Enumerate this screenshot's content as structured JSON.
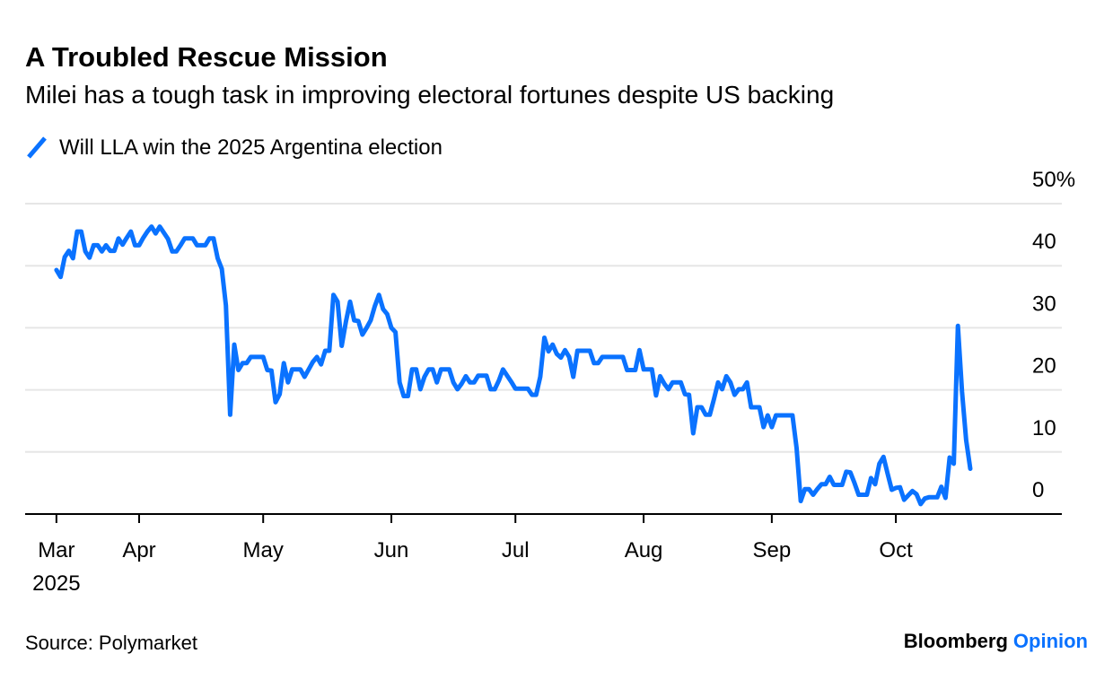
{
  "title": "A Troubled Rescue Mission",
  "subtitle": "Milei has a tough task in improving electoral fortunes despite US backing",
  "source": "Source: Polymarket",
  "logo": {
    "brand": "Bloomberg",
    "section": "Opinion"
  },
  "colors": {
    "series": "#0a72ff",
    "grid": "#e6e6e6",
    "axis": "#000000",
    "logo_accent": "#0a72ff"
  },
  "chart_data": {
    "type": "line",
    "title": "A Troubled Rescue Mission",
    "subtitle": "Milei has a tough task in improving electoral fortunes despite US backing",
    "legend_placement": "top-left",
    "grid": true,
    "ylim": [
      0,
      50
    ],
    "y_ticks": [
      {
        "value": 50,
        "label": "50%"
      },
      {
        "value": 40,
        "label": "40"
      },
      {
        "value": 30,
        "label": "30"
      },
      {
        "value": 20,
        "label": "20"
      },
      {
        "value": 10,
        "label": "10"
      },
      {
        "value": 0,
        "label": "0"
      }
    ],
    "x_ticks": [
      {
        "date": "2025-03-12",
        "label": "Mar",
        "sublabel": "2025"
      },
      {
        "date": "2025-04-01",
        "label": "Apr"
      },
      {
        "date": "2025-05-01",
        "label": "May"
      },
      {
        "date": "2025-06-01",
        "label": "Jun"
      },
      {
        "date": "2025-07-01",
        "label": "Jul"
      },
      {
        "date": "2025-08-01",
        "label": "Aug"
      },
      {
        "date": "2025-09-01",
        "label": "Sep"
      },
      {
        "date": "2025-10-01",
        "label": "Oct"
      }
    ],
    "series": [
      {
        "name": "Will LLA win the 2025 Argentina election",
        "dates": [
          "2025-03-12",
          "2025-03-13",
          "2025-03-14",
          "2025-03-15",
          "2025-03-16",
          "2025-03-17",
          "2025-03-18",
          "2025-03-19",
          "2025-03-20",
          "2025-03-21",
          "2025-03-22",
          "2025-03-23",
          "2025-03-24",
          "2025-03-25",
          "2025-03-26",
          "2025-03-27",
          "2025-03-28",
          "2025-03-29",
          "2025-03-30",
          "2025-03-31",
          "2025-04-01",
          "2025-04-02",
          "2025-04-03",
          "2025-04-04",
          "2025-04-05",
          "2025-04-06",
          "2025-04-07",
          "2025-04-08",
          "2025-04-09",
          "2025-04-10",
          "2025-04-11",
          "2025-04-12",
          "2025-04-13",
          "2025-04-14",
          "2025-04-15",
          "2025-04-16",
          "2025-04-17",
          "2025-04-18",
          "2025-04-19",
          "2025-04-20",
          "2025-04-21",
          "2025-04-22",
          "2025-04-23",
          "2025-04-24",
          "2025-04-25",
          "2025-04-26",
          "2025-04-27",
          "2025-04-28",
          "2025-04-29",
          "2025-04-30",
          "2025-05-01",
          "2025-05-02",
          "2025-05-03",
          "2025-05-04",
          "2025-05-05",
          "2025-05-06",
          "2025-05-07",
          "2025-05-08",
          "2025-05-09",
          "2025-05-10",
          "2025-05-11",
          "2025-05-12",
          "2025-05-13",
          "2025-05-14",
          "2025-05-15",
          "2025-05-16",
          "2025-05-17",
          "2025-05-18",
          "2025-05-19",
          "2025-05-20",
          "2025-05-21",
          "2025-05-22",
          "2025-05-23",
          "2025-05-24",
          "2025-05-25",
          "2025-05-26",
          "2025-05-27",
          "2025-05-28",
          "2025-05-29",
          "2025-05-30",
          "2025-05-31",
          "2025-06-01",
          "2025-06-02",
          "2025-06-03",
          "2025-06-04",
          "2025-06-05",
          "2025-06-06",
          "2025-06-07",
          "2025-06-08",
          "2025-06-09",
          "2025-06-10",
          "2025-06-11",
          "2025-06-12",
          "2025-06-13",
          "2025-06-14",
          "2025-06-15",
          "2025-06-16",
          "2025-06-17",
          "2025-06-18",
          "2025-06-19",
          "2025-06-20",
          "2025-06-21",
          "2025-06-22",
          "2025-06-23",
          "2025-06-24",
          "2025-06-25",
          "2025-06-26",
          "2025-06-27",
          "2025-06-28",
          "2025-06-29",
          "2025-06-30",
          "2025-07-01",
          "2025-07-02",
          "2025-07-03",
          "2025-07-04",
          "2025-07-05",
          "2025-07-06",
          "2025-07-07",
          "2025-07-08",
          "2025-07-09",
          "2025-07-10",
          "2025-07-11",
          "2025-07-12",
          "2025-07-13",
          "2025-07-14",
          "2025-07-15",
          "2025-07-16",
          "2025-07-17",
          "2025-07-18",
          "2025-07-19",
          "2025-07-20",
          "2025-07-21",
          "2025-07-22",
          "2025-07-23",
          "2025-07-24",
          "2025-07-25",
          "2025-07-26",
          "2025-07-27",
          "2025-07-28",
          "2025-07-29",
          "2025-07-30",
          "2025-07-31",
          "2025-08-01",
          "2025-08-02",
          "2025-08-03",
          "2025-08-04",
          "2025-08-05",
          "2025-08-06",
          "2025-08-07",
          "2025-08-08",
          "2025-08-09",
          "2025-08-10",
          "2025-08-11",
          "2025-08-12",
          "2025-08-13",
          "2025-08-14",
          "2025-08-15",
          "2025-08-16",
          "2025-08-17",
          "2025-08-18",
          "2025-08-19",
          "2025-08-20",
          "2025-08-21",
          "2025-08-22",
          "2025-08-23",
          "2025-08-24",
          "2025-08-25",
          "2025-08-26",
          "2025-08-27",
          "2025-08-28",
          "2025-08-29",
          "2025-08-30",
          "2025-08-31",
          "2025-09-01",
          "2025-09-02",
          "2025-09-03",
          "2025-09-04",
          "2025-09-05",
          "2025-09-06",
          "2025-09-07",
          "2025-09-08",
          "2025-09-09",
          "2025-09-10",
          "2025-09-11",
          "2025-09-12",
          "2025-09-13",
          "2025-09-14",
          "2025-09-15",
          "2025-09-16",
          "2025-09-17",
          "2025-09-18",
          "2025-09-19",
          "2025-09-20",
          "2025-09-21",
          "2025-09-22",
          "2025-09-23",
          "2025-09-24",
          "2025-09-25",
          "2025-09-26",
          "2025-09-27",
          "2025-09-28",
          "2025-09-29",
          "2025-09-30",
          "2025-10-01",
          "2025-10-02",
          "2025-10-03",
          "2025-10-04",
          "2025-10-05",
          "2025-10-06",
          "2025-10-07",
          "2025-10-08",
          "2025-10-09",
          "2025-10-10",
          "2025-10-11",
          "2025-10-12",
          "2025-10-13",
          "2025-10-14",
          "2025-10-15",
          "2025-10-16",
          "2025-10-17",
          "2025-10-18",
          "2025-10-19"
        ],
        "values": [
          39.3,
          38.2,
          41.4,
          42.4,
          41.2,
          45.5,
          45.5,
          42.3,
          41.3,
          43.3,
          43.3,
          42.3,
          43.3,
          42.4,
          42.4,
          44.4,
          43.4,
          44.5,
          45.5,
          43.3,
          43.3,
          44.5,
          45.5,
          46.3,
          45.2,
          46.3,
          45.3,
          44.3,
          42.3,
          42.3,
          43.3,
          44.4,
          44.4,
          44.4,
          43.3,
          43.3,
          43.3,
          44.4,
          44.4,
          41.2,
          39.5,
          33.6,
          16.0,
          27.3,
          23.2,
          24.3,
          24.3,
          25.3,
          25.3,
          25.3,
          25.3,
          23.2,
          23.1,
          18.0,
          19.3,
          24.3,
          21.2,
          23.3,
          23.3,
          23.3,
          22.1,
          23.3,
          24.5,
          25.3,
          24.1,
          26.3,
          26.3,
          35.3,
          34.2,
          27.1,
          31.0,
          34.2,
          31.2,
          31.1,
          28.9,
          30.0,
          31.2,
          33.5,
          35.3,
          33.0,
          32.2,
          30.0,
          29.3,
          21.2,
          19.0,
          19.0,
          23.3,
          23.3,
          20.1,
          22.1,
          23.3,
          23.3,
          21.2,
          23.3,
          23.3,
          23.3,
          21.2,
          20.1,
          21.0,
          22.2,
          21.2,
          21.2,
          22.3,
          22.3,
          22.3,
          20.1,
          20.1,
          21.5,
          23.3,
          22.3,
          21.3,
          20.2,
          20.2,
          20.2,
          20.2,
          19.2,
          19.2,
          22.1,
          28.4,
          26.2,
          27.3,
          25.8,
          25.2,
          26.4,
          25.3,
          22.1,
          26.3,
          26.3,
          26.3,
          26.3,
          24.3,
          24.3,
          25.3,
          25.3,
          25.3,
          25.3,
          25.3,
          25.3,
          23.2,
          23.2,
          23.2,
          26.4,
          23.3,
          23.3,
          23.3,
          19.1,
          22.2,
          21.0,
          20.1,
          21.2,
          21.2,
          21.2,
          19.3,
          19.2,
          13.0,
          17.2,
          17.2,
          16.0,
          16.0,
          18.5,
          21.2,
          20.1,
          22.2,
          21.2,
          19.2,
          20.1,
          20.1,
          21.2,
          17.2,
          17.2,
          17.2,
          14.0,
          15.9,
          14.0,
          15.9,
          15.9,
          15.9,
          15.9,
          15.9,
          10.6,
          2.1,
          4.0,
          4.0,
          3.1,
          4.0,
          4.8,
          4.8,
          6.0,
          4.7,
          4.7,
          4.7,
          6.8,
          6.7,
          5.0,
          3.1,
          3.1,
          3.1,
          5.8,
          4.8,
          8.1,
          9.2,
          6.5,
          3.9,
          4.2,
          4.3,
          2.3,
          3.0,
          3.7,
          3.2,
          1.6,
          2.5,
          2.7,
          2.7,
          2.7,
          4.4,
          2.6,
          9.1,
          8.1,
          30.3,
          19.7,
          11.9,
          7.3
        ]
      }
    ]
  }
}
